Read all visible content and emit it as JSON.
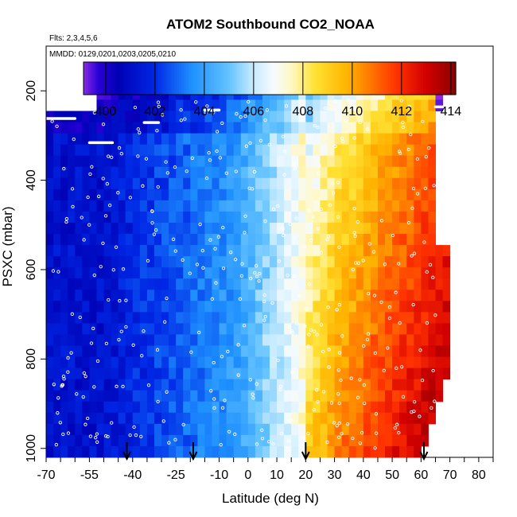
{
  "chart_data": {
    "type": "heatmap",
    "title": "ATOM2 Southbound CO2_NOAA",
    "flights_note": "Flts: 2,3,4,5,6",
    "dates_note": "MMDD: 0129,0201,0203,0205,0210",
    "xlabel": "Latitude (deg N)",
    "ylabel": "PSXC (mbar)",
    "xlim": [
      -70,
      85
    ],
    "ylim": [
      1020,
      100
    ],
    "x_ticks": [
      -70,
      -55,
      -40,
      -25,
      -10,
      0,
      10,
      20,
      30,
      40,
      50,
      60,
      70,
      80
    ],
    "y_ticks": [
      200,
      400,
      600,
      800,
      1000
    ],
    "colorbar": {
      "min": 399.1,
      "max": 414.2,
      "ticks": [
        400,
        402,
        404,
        406,
        408,
        410,
        412,
        414
      ],
      "stops": [
        {
          "value": 399.1,
          "color": "#8a2be2"
        },
        {
          "value": 399.7,
          "color": "#2a00d8"
        },
        {
          "value": 400.5,
          "color": "#0000b4"
        },
        {
          "value": 402.0,
          "color": "#0028e6"
        },
        {
          "value": 403.5,
          "color": "#1e90ff"
        },
        {
          "value": 405.0,
          "color": "#64c3ff"
        },
        {
          "value": 406.0,
          "color": "#c8ebff"
        },
        {
          "value": 406.8,
          "color": "#f5fbff"
        },
        {
          "value": 407.5,
          "color": "#fff8c8"
        },
        {
          "value": 408.5,
          "color": "#ffe132"
        },
        {
          "value": 409.8,
          "color": "#ffb400"
        },
        {
          "value": 410.8,
          "color": "#ff7300"
        },
        {
          "value": 411.8,
          "color": "#ff3200"
        },
        {
          "value": 413.0,
          "color": "#d20000"
        },
        {
          "value": 414.2,
          "color": "#8b0000"
        }
      ]
    },
    "arrows_latitude": [
      -42,
      -19,
      20,
      61
    ],
    "grid": false,
    "legend": "top (colorbar)"
  }
}
